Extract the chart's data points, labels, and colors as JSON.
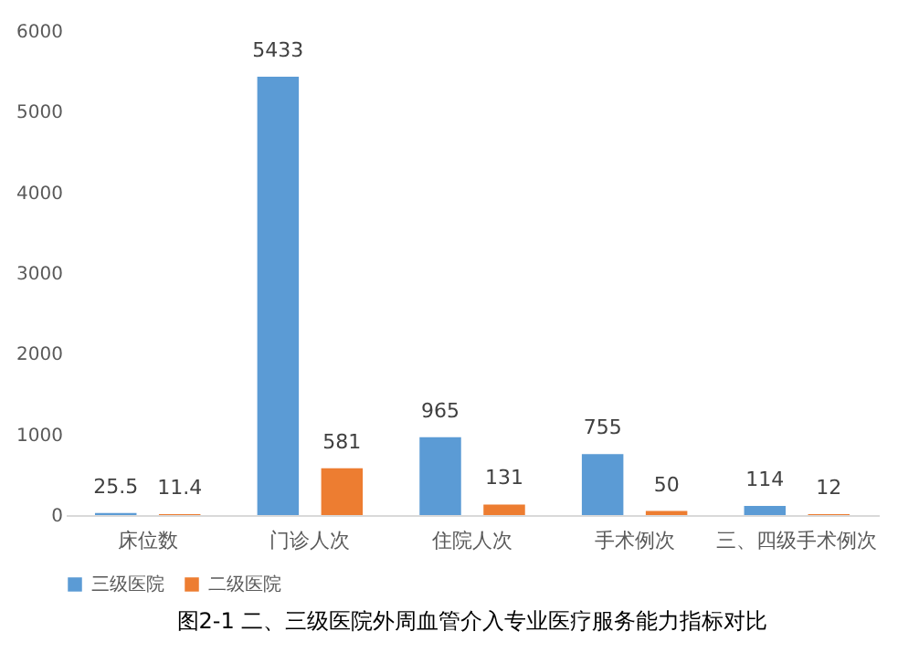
{
  "chart_data": {
    "type": "bar",
    "title": "图2-1   二、三级医院外周血管介入专业医疗服务能力指标对比",
    "categories": [
      "床位数",
      "门诊人次",
      "住院人次",
      "手术例次",
      "三、四级手术例次"
    ],
    "series": [
      {
        "name": "三级医院",
        "color": "#5b9bd5",
        "values": [
          25.5,
          5433,
          965,
          755,
          114
        ]
      },
      {
        "name": "二级医院",
        "color": "#ed7d31",
        "values": [
          11.4,
          581,
          131,
          50,
          12
        ]
      }
    ],
    "ylim": [
      0,
      6000
    ],
    "yticks": [
      0,
      1000,
      2000,
      3000,
      4000,
      5000,
      6000
    ],
    "grid": false,
    "legend": "bottom",
    "data_labels": true
  }
}
